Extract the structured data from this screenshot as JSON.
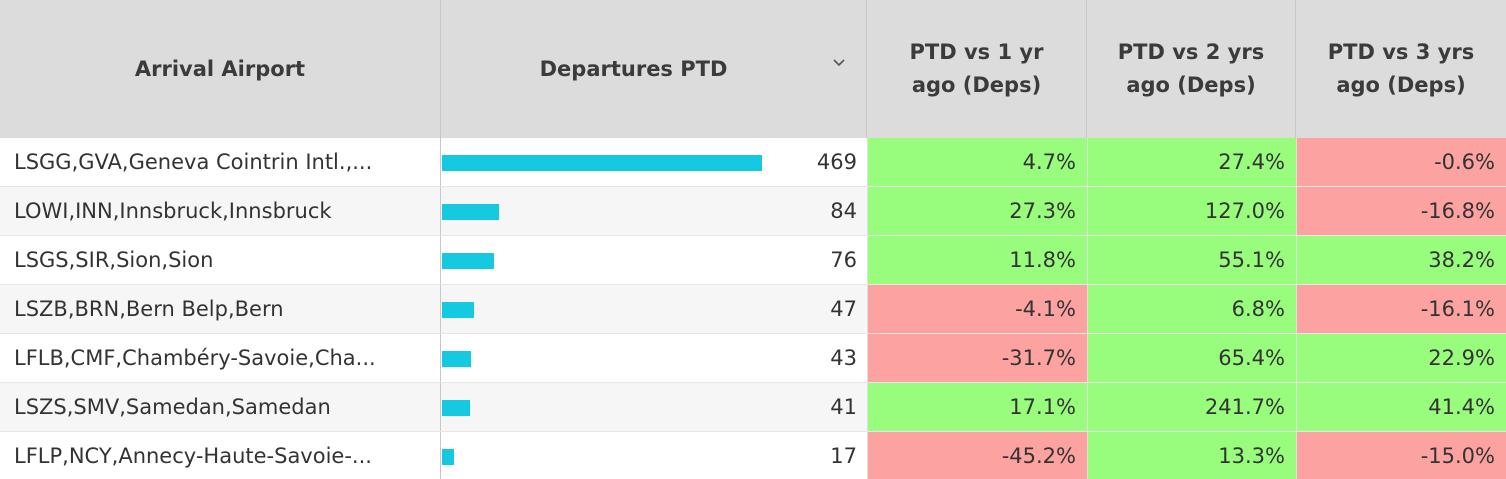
{
  "colors": {
    "bar": "#15c9e0",
    "positive": "#98fc7c",
    "negative": "#fca2a0",
    "header_bg": "#dcdcdc"
  },
  "header": {
    "col_airport": "Arrival Airport",
    "col_departures": "Departures PTD",
    "col_1yr": "PTD vs 1 yr ago (Deps)",
    "col_2yr": "PTD vs 2 yrs ago (Deps)",
    "col_3yr": "PTD vs 3 yrs ago (Deps)",
    "sort_icon": "chevron-down-icon"
  },
  "departures_max": 469,
  "rows": [
    {
      "airport": "LSGG,GVA,Geneva Cointrin Intl.,...",
      "departures": 469,
      "vs1": "4.7%",
      "vs2": "27.4%",
      "vs3": "-0.6%"
    },
    {
      "airport": "LOWI,INN,Innsbruck,Innsbruck",
      "departures": 84,
      "vs1": "27.3%",
      "vs2": "127.0%",
      "vs3": "-16.8%"
    },
    {
      "airport": "LSGS,SIR,Sion,Sion",
      "departures": 76,
      "vs1": "11.8%",
      "vs2": "55.1%",
      "vs3": "38.2%"
    },
    {
      "airport": "LSZB,BRN,Bern Belp,Bern",
      "departures": 47,
      "vs1": "-4.1%",
      "vs2": "6.8%",
      "vs3": "-16.1%"
    },
    {
      "airport": "LFLB,CMF,Chambéry-Savoie,Cha...",
      "departures": 43,
      "vs1": "-31.7%",
      "vs2": "65.4%",
      "vs3": "22.9%"
    },
    {
      "airport": "LSZS,SMV,Samedan,Samedan",
      "departures": 41,
      "vs1": "17.1%",
      "vs2": "241.7%",
      "vs3": "41.4%"
    },
    {
      "airport": "LFLP,NCY,Annecy-Haute-Savoie-...",
      "departures": 17,
      "vs1": "-45.2%",
      "vs2": "13.3%",
      "vs3": "-15.0%"
    }
  ]
}
